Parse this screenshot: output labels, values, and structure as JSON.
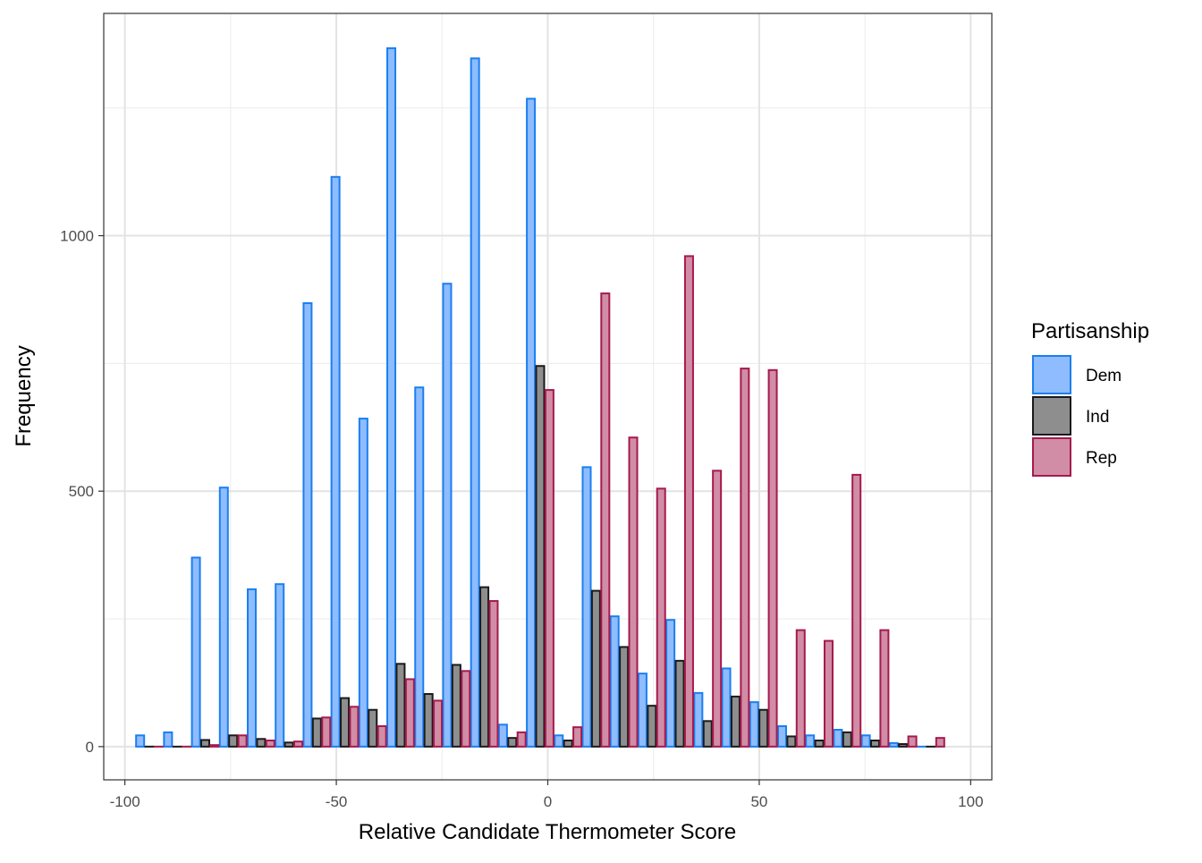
{
  "chart_data": {
    "type": "bar",
    "title": "",
    "xlabel": "Relative Candidate Thermometer Score",
    "ylabel": "Frequency",
    "xlim": [
      -105,
      105
    ],
    "ylim": [
      -65,
      1435
    ],
    "x_ticks": [
      -100,
      -50,
      0,
      50,
      100
    ],
    "y_ticks": [
      0,
      500,
      1000
    ],
    "grid": true,
    "legend": {
      "title": "Partisanship",
      "position": "right"
    },
    "bin_centers": [
      -94.2,
      -87.6,
      -81.0,
      -74.4,
      -67.8,
      -61.2,
      -54.6,
      -48.0,
      -41.4,
      -34.8,
      -28.2,
      -21.6,
      -15.0,
      -8.4,
      -1.8,
      4.8,
      11.4,
      18.0,
      24.6,
      31.2,
      37.8,
      44.4,
      51.0,
      57.6,
      64.2,
      70.8,
      77.4,
      84.0,
      90.6
    ],
    "series": [
      {
        "name": "Dem",
        "fill": "#8ebcff",
        "stroke": "#1a7ff0",
        "values": [
          22,
          28,
          370,
          507,
          308,
          318,
          868,
          1115,
          642,
          1367,
          703,
          906,
          1347,
          43,
          1268,
          22,
          547,
          255,
          143,
          248,
          105,
          153,
          87,
          40,
          22,
          33,
          22,
          7,
          0
        ]
      },
      {
        "name": "Ind",
        "fill": "#8e8e8e",
        "stroke": "#1a1a1a",
        "values": [
          0,
          0,
          13,
          22,
          15,
          8,
          55,
          95,
          72,
          162,
          103,
          160,
          312,
          17,
          745,
          12,
          305,
          195,
          80,
          168,
          50,
          98,
          72,
          20,
          12,
          28,
          12,
          5,
          0
        ]
      },
      {
        "name": "Rep",
        "fill": "#d08da5",
        "stroke": "#a51a4d",
        "values": [
          0,
          0,
          3,
          22,
          12,
          10,
          57,
          78,
          40,
          132,
          90,
          148,
          285,
          28,
          698,
          38,
          887,
          605,
          505,
          960,
          540,
          740,
          737,
          228,
          207,
          532,
          228,
          20,
          17
        ]
      }
    ]
  }
}
